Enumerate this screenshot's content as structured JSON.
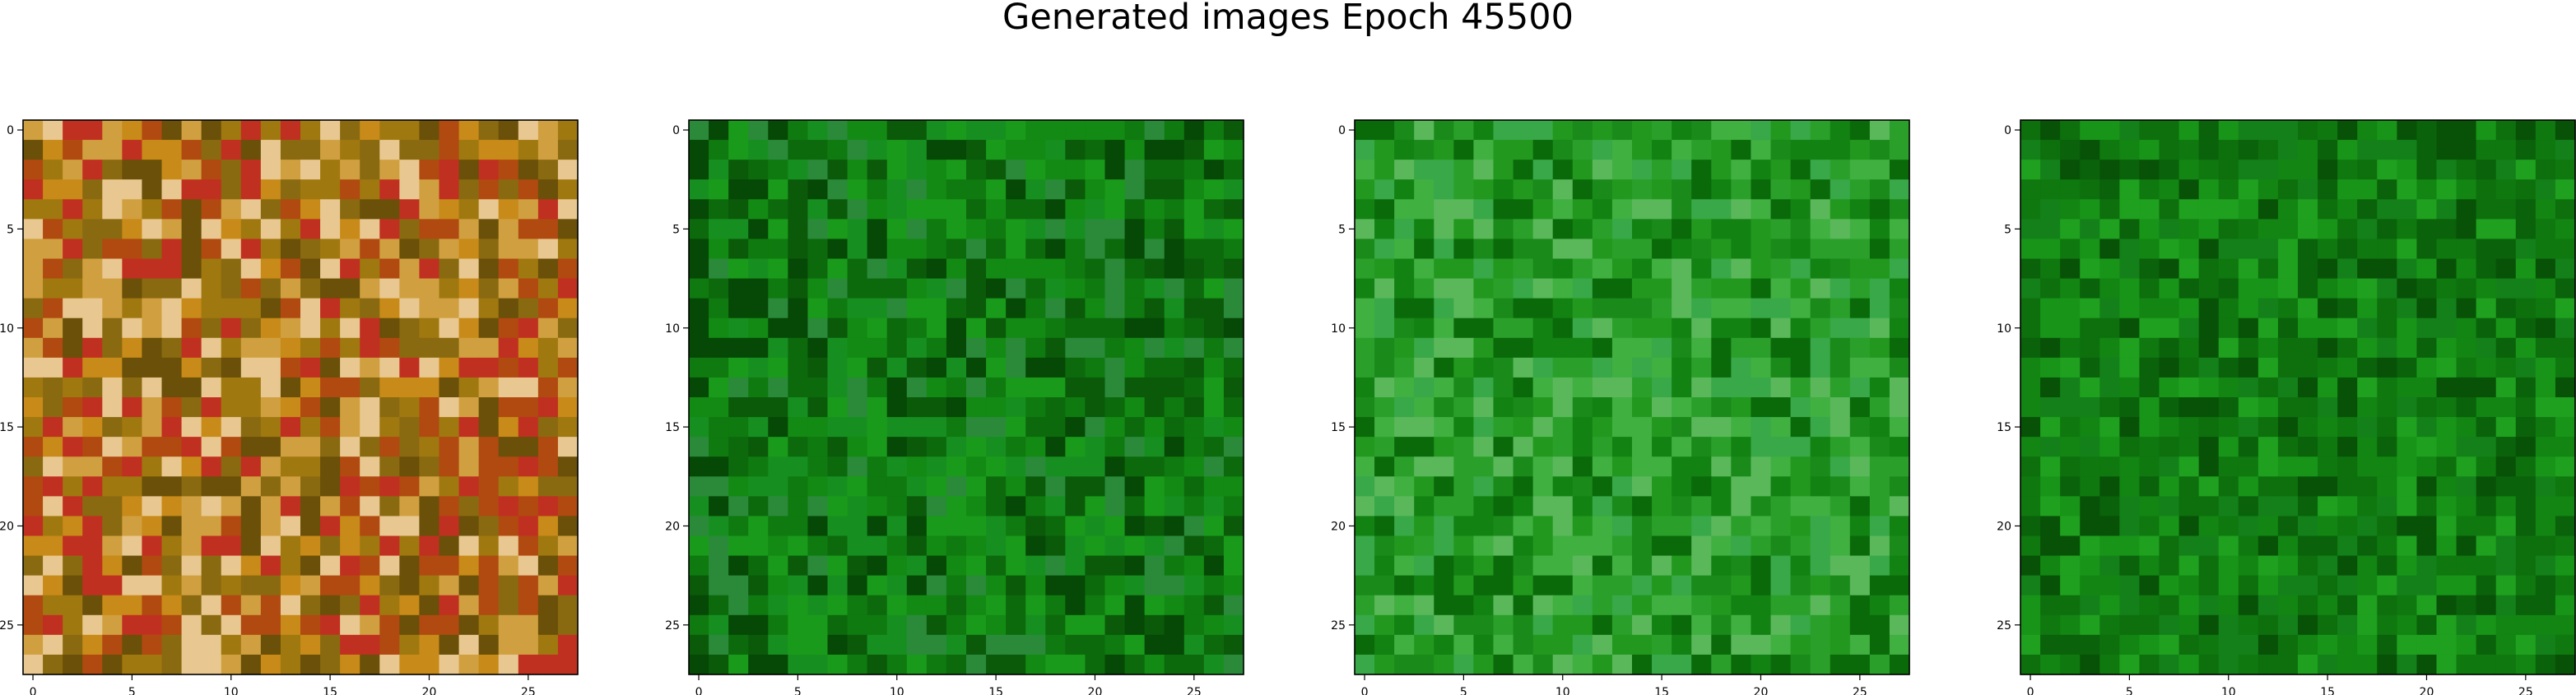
{
  "figure": {
    "title": "Generated images Epoch 45500"
  },
  "chart_data": [
    {
      "type": "heatmap",
      "image_size": 28,
      "dominant_palette": [
        "#a07810",
        "#c88a18",
        "#8a6a10",
        "#b04a10",
        "#d0a040",
        "#6a5008",
        "#c03020",
        "#e8c890"
      ],
      "xticks": [
        0,
        5,
        10,
        15,
        20,
        25
      ],
      "yticks": [
        0,
        5,
        10,
        15,
        20,
        25
      ],
      "xlim": [
        -0.5,
        27.5
      ],
      "ylim": [
        27.5,
        -0.5
      ]
    },
    {
      "type": "heatmap",
      "image_size": 28,
      "dominant_palette": [
        "#0f7a0f",
        "#138a13",
        "#0c6a0c",
        "#1a9a1a",
        "#0a5a0a",
        "#2a8a3a",
        "#064806",
        "#178f20"
      ],
      "xticks": [
        0,
        5,
        10,
        15,
        20,
        25
      ],
      "yticks": [
        0,
        5,
        10,
        15,
        20,
        25
      ],
      "xlim": [
        -0.5,
        27.5
      ],
      "ylim": [
        27.5,
        -0.5
      ]
    },
    {
      "type": "heatmap",
      "image_size": 28,
      "dominant_palette": [
        "#2aa02a",
        "#1a8a1a",
        "#40b040",
        "#128212",
        "#5ab85a",
        "#0a6a0a",
        "#38a848",
        "#22981e"
      ],
      "xticks": [
        0,
        5,
        10,
        15,
        20,
        25
      ],
      "yticks": [
        0,
        5,
        10,
        15,
        20,
        25
      ],
      "xlim": [
        -0.5,
        27.5
      ],
      "ylim": [
        27.5,
        -0.5
      ]
    },
    {
      "type": "heatmap",
      "image_size": 28,
      "dominant_palette": [
        "#0f780f",
        "#128512",
        "#0a620a",
        "#189518",
        "#085208",
        "#1fa01f",
        "#0d700d",
        "#14801a"
      ],
      "xticks": [
        0,
        5,
        10,
        15,
        20,
        25
      ],
      "yticks": [
        0,
        5,
        10,
        15,
        20,
        25
      ],
      "xlim": [
        -0.5,
        27.5
      ],
      "ylim": [
        27.5,
        -0.5
      ]
    }
  ]
}
